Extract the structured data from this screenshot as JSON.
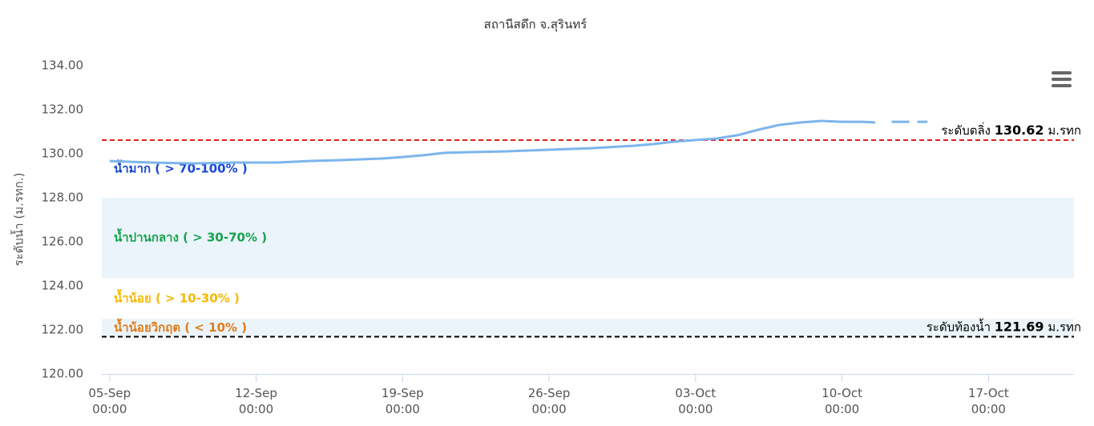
{
  "chart_data": {
    "type": "line",
    "title": "สถานีสดึก จ.สุรินทร์",
    "y_label": "ระดับน้ำ (ม.รทก.)",
    "ylim": [
      120,
      134
    ],
    "yticks": [
      {
        "value": 120,
        "label": "120.00"
      },
      {
        "value": 122,
        "label": "122.00"
      },
      {
        "value": 124,
        "label": "124.00"
      },
      {
        "value": 126,
        "label": "126.00"
      },
      {
        "value": 128,
        "label": "128.00"
      },
      {
        "value": 130,
        "label": "130.00"
      },
      {
        "value": 132,
        "label": "132.00"
      },
      {
        "value": 134,
        "label": "134.00"
      }
    ],
    "xlim": [
      "04-Sep 15:00",
      "21-Oct 02:00"
    ],
    "xticks": [
      "05-Sep 00:00",
      "12-Sep 00:00",
      "19-Sep 00:00",
      "26-Sep 00:00",
      "03-Oct 00:00",
      "10-Oct 00:00",
      "17-Oct 00:00"
    ],
    "grid": false,
    "series": [
      {
        "color": "#7cb5ec",
        "x": [
          "05-Sep 00:00",
          "07-Sep 00:00",
          "09-Sep 00:00",
          "11-Sep 00:00",
          "13-Sep 00:00",
          "14-Sep 12:00",
          "16-Sep 00:00",
          "18-Sep 00:00",
          "19-Sep 00:00",
          "20-Sep 00:00",
          "21-Sep 00:00",
          "22-Sep 00:00",
          "24-Sep 00:00",
          "26-Sep 00:00",
          "28-Sep 00:00",
          "30-Sep 00:00",
          "01-Oct 00:00",
          "02-Oct 00:00",
          "03-Oct 00:00",
          "04-Oct 00:00",
          "05-Oct 00:00",
          "06-Oct 00:00",
          "07-Oct 00:00",
          "08-Oct 00:00",
          "09-Oct 00:00",
          "10-Oct 00:00",
          "11-Oct 00:00",
          "11-Oct 14:00"
        ],
        "values": [
          129.67,
          129.6,
          129.56,
          129.6,
          129.6,
          129.67,
          129.71,
          129.78,
          129.85,
          129.93,
          130.04,
          130.07,
          130.11,
          130.18,
          130.25,
          130.36,
          130.44,
          130.55,
          130.62,
          130.69,
          130.84,
          131.09,
          131.31,
          131.42,
          131.49,
          131.45,
          131.45,
          131.42
        ]
      },
      {
        "color": "#7cb5ec",
        "dash": true,
        "x": [
          "12-Oct 09:00",
          "14-Oct 02:00"
        ],
        "values": [
          131.45,
          131.45
        ]
      }
    ],
    "plot_lines": [
      {
        "value": 130.62,
        "color": "#e0201b",
        "prefix": "ระดับตลิ่ง",
        "suffix": "ม.รทก"
      },
      {
        "value": 121.69,
        "color": "#000000",
        "prefix": "ระดับท้องน้ำ",
        "suffix": "ม.รทก"
      }
    ],
    "zones": [
      {
        "from": 128,
        "to": 130.62,
        "label": "น้ำมาก ( > 70-100% )",
        "color": "#1747d6"
      },
      {
        "from": 124.35,
        "to": 128,
        "label": "น้ำปานกลาง ( > 30-70% )",
        "color": "#16a34a",
        "band_color": "#ebf4fb"
      },
      {
        "from": 122.5,
        "to": 124.35,
        "label": "น้ำน้อย ( > 10-30% )",
        "color": "#f5b800"
      },
      {
        "from": 121.69,
        "to": 122.5,
        "label": "น้ำน้อยวิกฤต ( < 10% )",
        "color": "#e07b1a",
        "band_color": "#ebf4fb"
      }
    ]
  }
}
